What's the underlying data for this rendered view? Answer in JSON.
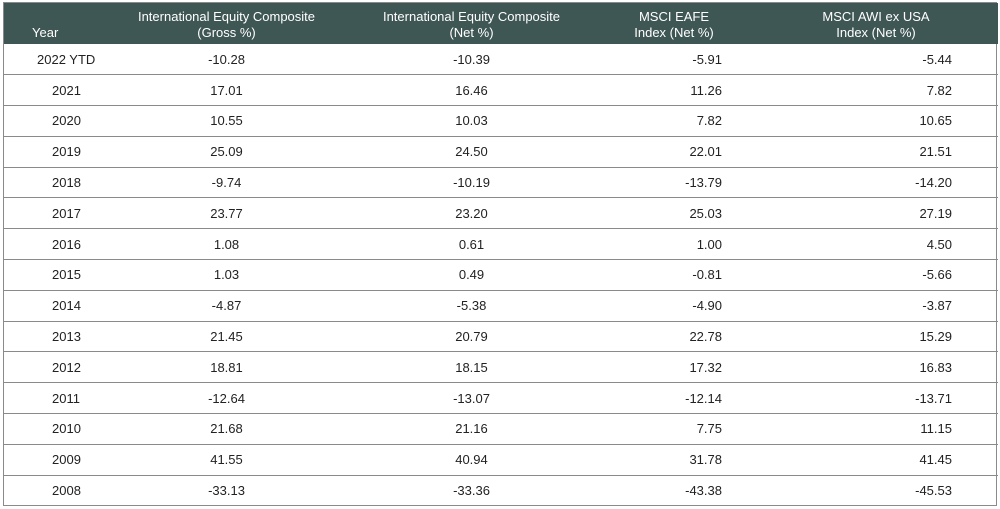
{
  "header": {
    "year": "Year",
    "gross_l1": "International Equity Composite",
    "gross_l2": "(Gross %)",
    "net_l1": "International Equity Composite",
    "net_l2": "(Net %)",
    "eafe_l1": "MSCI EAFE",
    "eafe_l2": "Index (Net %)",
    "acwi_l1": "MSCI AWI ex USA",
    "acwi_l2": "Index (Net %)"
  },
  "rows": [
    {
      "year": "2022 YTD",
      "gross": "-10.28",
      "net": "-10.39",
      "eafe": "-5.91",
      "acwi": "-5.44"
    },
    {
      "year": "2021",
      "gross": "17.01",
      "net": "16.46",
      "eafe": "11.26",
      "acwi": "7.82"
    },
    {
      "year": "2020",
      "gross": "10.55",
      "net": "10.03",
      "eafe": "7.82",
      "acwi": "10.65"
    },
    {
      "year": "2019",
      "gross": "25.09",
      "net": "24.50",
      "eafe": "22.01",
      "acwi": "21.51"
    },
    {
      "year": "2018",
      "gross": "-9.74",
      "net": "-10.19",
      "eafe": "-13.79",
      "acwi": "-14.20"
    },
    {
      "year": "2017",
      "gross": "23.77",
      "net": "23.20",
      "eafe": "25.03",
      "acwi": "27.19"
    },
    {
      "year": "2016",
      "gross": "1.08",
      "net": "0.61",
      "eafe": "1.00",
      "acwi": "4.50"
    },
    {
      "year": "2015",
      "gross": "1.03",
      "net": "0.49",
      "eafe": "-0.81",
      "acwi": "-5.66"
    },
    {
      "year": "2014",
      "gross": "-4.87",
      "net": "-5.38",
      "eafe": "-4.90",
      "acwi": "-3.87"
    },
    {
      "year": "2013",
      "gross": "21.45",
      "net": "20.79",
      "eafe": "22.78",
      "acwi": "15.29"
    },
    {
      "year": "2012",
      "gross": "18.81",
      "net": "18.15",
      "eafe": "17.32",
      "acwi": "16.83"
    },
    {
      "year": "2011",
      "gross": "-12.64",
      "net": "-13.07",
      "eafe": "-12.14",
      "acwi": "-13.71"
    },
    {
      "year": "2010",
      "gross": "21.68",
      "net": "21.16",
      "eafe": "7.75",
      "acwi": "11.15"
    },
    {
      "year": "2009",
      "gross": "41.55",
      "net": "40.94",
      "eafe": "31.78",
      "acwi": "41.45"
    },
    {
      "year": "2008",
      "gross": "-33.13",
      "net": "-33.36",
      "eafe": "-43.38",
      "acwi": "-45.53"
    }
  ],
  "colors": {
    "header_bg": "#3f5754",
    "header_text": "#ffffff",
    "grid": "#8a8a8a"
  }
}
